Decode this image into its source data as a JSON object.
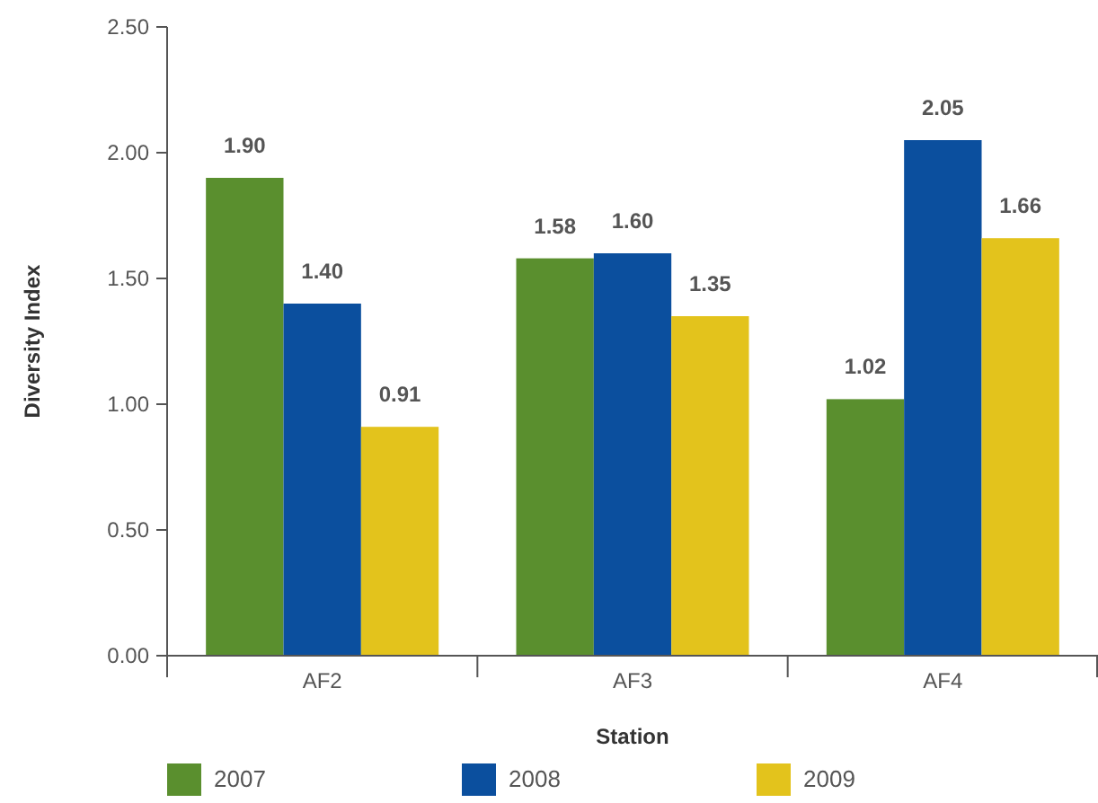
{
  "chart_data": {
    "type": "bar",
    "xlabel": "Station",
    "ylabel": "Diversity Index",
    "categories": [
      "AF2",
      "AF3",
      "AF4"
    ],
    "series": [
      {
        "name": "2007",
        "color": "#5a8f2e",
        "values": [
          1.9,
          1.58,
          1.02
        ],
        "value_labels": [
          "1.90",
          "1.58",
          "1.02"
        ]
      },
      {
        "name": "2008",
        "color": "#0b4f9e",
        "values": [
          1.4,
          1.6,
          2.05
        ],
        "value_labels": [
          "1.40",
          "1.60",
          "2.05"
        ]
      },
      {
        "name": "2009",
        "color": "#e3c31c",
        "values": [
          0.91,
          1.35,
          1.66
        ],
        "value_labels": [
          "0.91",
          "1.35",
          "1.66"
        ]
      }
    ],
    "ylim": [
      0,
      2.5
    ],
    "yticks": [
      {
        "value": 0,
        "label": "0.00"
      },
      {
        "value": 0.5,
        "label": "0.50"
      },
      {
        "value": 1,
        "label": "1.00"
      },
      {
        "value": 1.5,
        "label": "1.50"
      },
      {
        "value": 2,
        "label": "2.00"
      },
      {
        "value": 2.5,
        "label": "2.50"
      }
    ],
    "grid": false,
    "legend": "bottom"
  }
}
